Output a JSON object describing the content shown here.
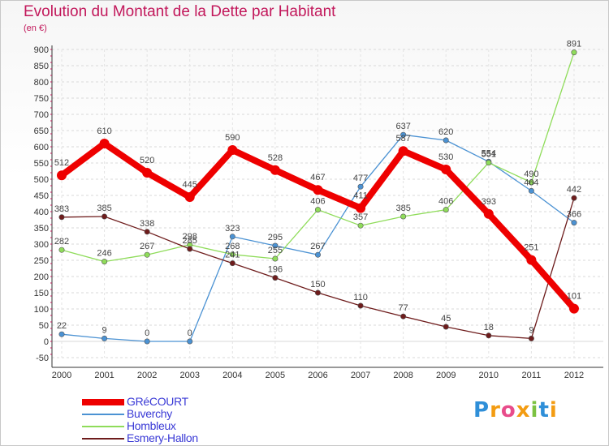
{
  "title": "Evolution du Montant de la Dette par Habitant",
  "subtitle": "(en €)",
  "brand": "Proxiti",
  "chart_data": {
    "type": "line",
    "x": [
      "2000",
      "2001",
      "2002",
      "2003",
      "2004",
      "2005",
      "2006",
      "2007",
      "2008",
      "2009",
      "2010",
      "2011",
      "2012"
    ],
    "ylim": [
      -50,
      900
    ],
    "yticks": [
      -50,
      0,
      50,
      100,
      150,
      200,
      250,
      300,
      350,
      400,
      450,
      500,
      550,
      600,
      650,
      700,
      750,
      800,
      850,
      900
    ],
    "grid": true,
    "legend_position": "bottom-left",
    "series": [
      {
        "name": "GRéCOURT",
        "color": "#ee0000",
        "values": [
          512,
          610,
          520,
          445,
          590,
          528,
          467,
          411,
          587,
          530,
          393,
          251,
          101
        ]
      },
      {
        "name": "Buverchy",
        "color": "#4b92d3",
        "values": [
          22,
          9,
          0,
          0,
          323,
          295,
          267,
          477,
          637,
          620,
          554,
          464,
          366
        ]
      },
      {
        "name": "Hombleux",
        "color": "#8fdc5a",
        "values": [
          282,
          246,
          267,
          298,
          268,
          255,
          406,
          357,
          385,
          406,
          551,
          490,
          891
        ]
      },
      {
        "name": "Esmery-Hallon",
        "color": "#6e1c1c",
        "values": [
          383,
          385,
          338,
          285,
          241,
          196,
          150,
          110,
          77,
          45,
          18,
          9,
          442
        ]
      }
    ]
  }
}
